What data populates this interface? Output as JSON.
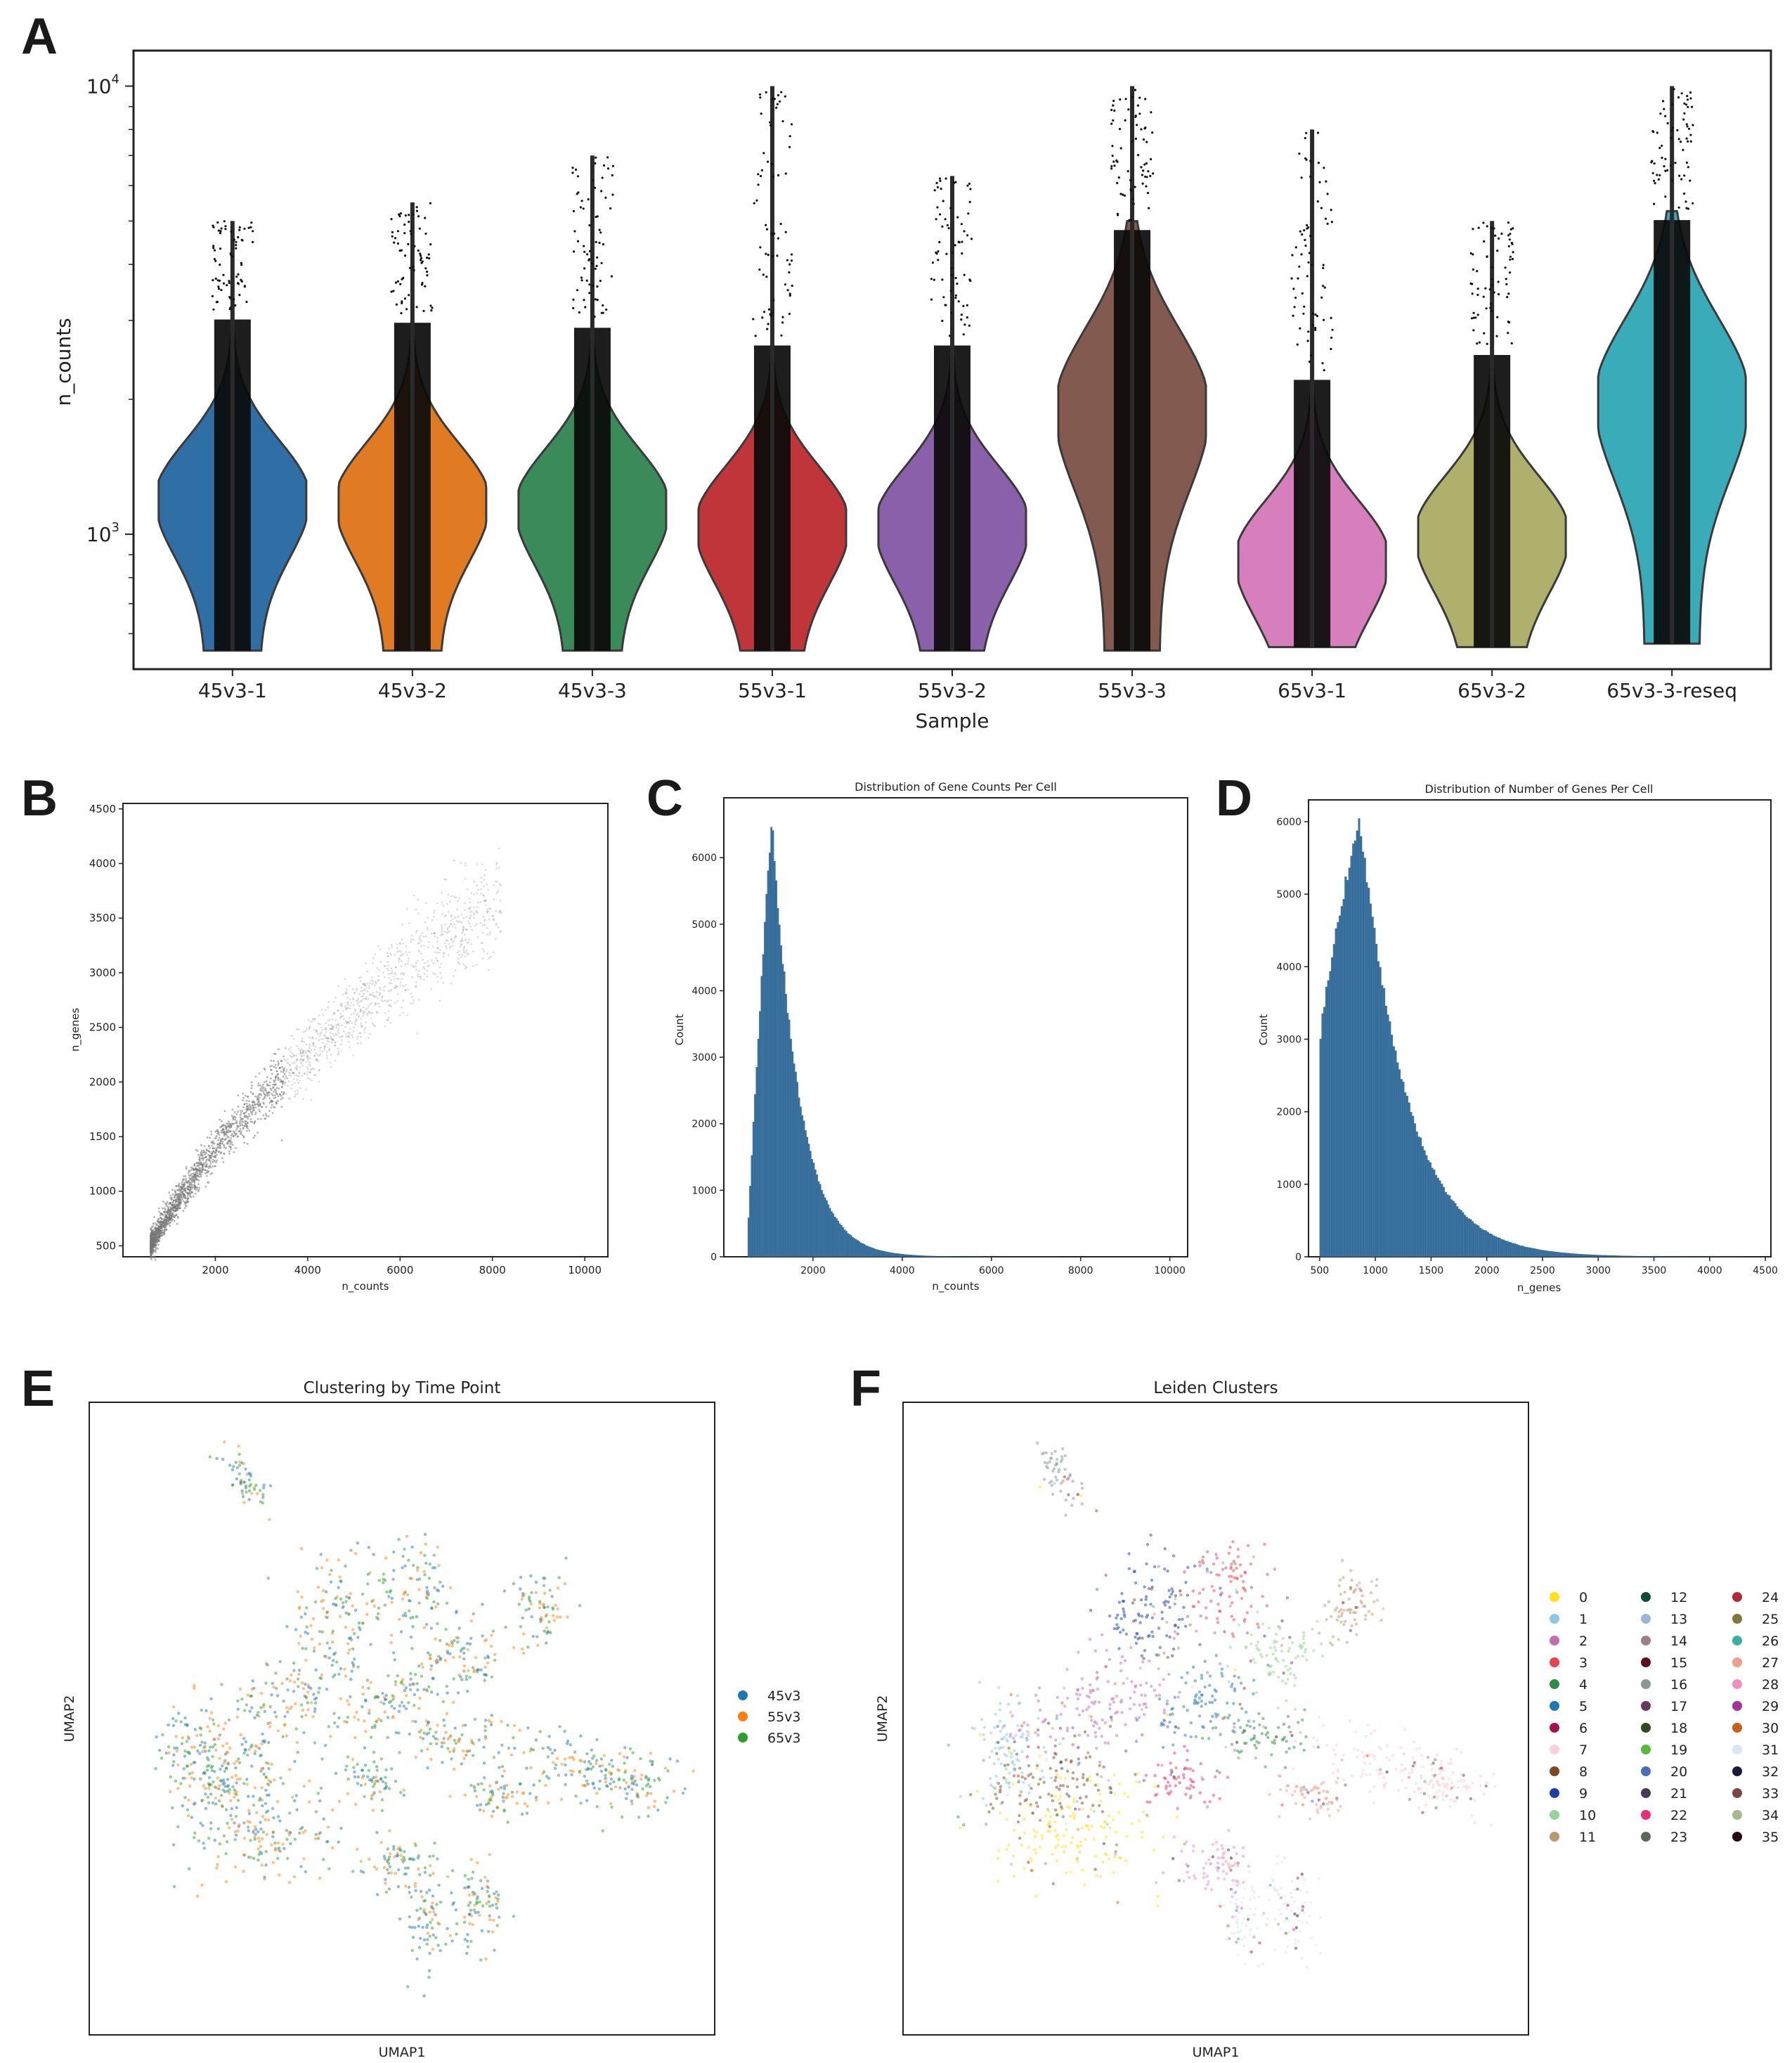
{
  "panel_letters": [
    "A",
    "B",
    "C",
    "D",
    "E",
    "F"
  ],
  "chart_data": [
    {
      "panel": "A",
      "type": "violin",
      "xlabel": "Sample",
      "ylabel": "n_counts",
      "yscale": "log",
      "ylim": [
        500,
        12000
      ],
      "ytick_labels": [
        "10^3",
        "10^4"
      ],
      "categories": [
        "45v3-1",
        "45v3-2",
        "45v3-3",
        "55v3-1",
        "55v3-2",
        "55v3-3",
        "65v3-1",
        "65v3-2",
        "65v3-3-reseq"
      ],
      "colors": [
        "#2f6fa5",
        "#e07b24",
        "#3a8a5a",
        "#c0353a",
        "#8a60aa",
        "#835a4f",
        "#d67fbc",
        "#aeb06b",
        "#3aabb9"
      ],
      "min": [
        550,
        550,
        550,
        550,
        550,
        550,
        560,
        560,
        570
      ],
      "max": [
        5000,
        5500,
        7000,
        10000,
        6300,
        10000,
        8000,
        5000,
        10000
      ],
      "median": [
        1200,
        1180,
        1150,
        1050,
        1050,
        1900,
        880,
        1000,
        2000
      ]
    },
    {
      "panel": "B",
      "type": "scatter",
      "xlabel": "n_counts",
      "ylabel": "n_genes",
      "xlim": [
        0,
        10500
      ],
      "ylim": [
        400,
        4550
      ],
      "xticks": [
        2000,
        4000,
        6000,
        8000,
        10000
      ],
      "yticks": [
        500,
        1000,
        1500,
        2000,
        2500,
        3000,
        3500,
        4000,
        4500
      ],
      "trend_x": [
        600,
        1000,
        2000,
        3000,
        4000,
        5000,
        6000,
        7000,
        8000
      ],
      "trend_y": [
        500,
        800,
        1400,
        1850,
        2250,
        2650,
        3000,
        3300,
        3600
      ]
    },
    {
      "panel": "C",
      "type": "bar",
      "title": "Distribution of Gene Counts Per Cell",
      "xlabel": "n_counts",
      "ylabel": "Count",
      "xlim": [
        0,
        10400
      ],
      "ylim": [
        0,
        6900
      ],
      "xticks": [
        2000,
        4000,
        6000,
        8000,
        10000
      ],
      "yticks": [
        0,
        1000,
        2000,
        3000,
        4000,
        5000,
        6000
      ],
      "peak_x": 1050,
      "peak_count": 6600,
      "range": [
        500,
        10000
      ]
    },
    {
      "panel": "D",
      "type": "bar",
      "title": "Distribution of Number of Genes Per Cell",
      "xlabel": "n_genes",
      "ylabel": "Count",
      "xlim": [
        400,
        4550
      ],
      "ylim": [
        0,
        6300
      ],
      "xticks": [
        500,
        1000,
        1500,
        2000,
        2500,
        3000,
        3500,
        4000,
        4500
      ],
      "yticks": [
        0,
        1000,
        2000,
        3000,
        4000,
        5000,
        6000
      ],
      "peak_x": 850,
      "peak_count": 6050,
      "range": [
        500,
        4300
      ]
    },
    {
      "panel": "E",
      "type": "scatter",
      "title": "Clustering by Time Point",
      "xlabel": "UMAP1",
      "ylabel": "UMAP2",
      "legend": [
        {
          "label": "45v3",
          "color": "#1f77b4"
        },
        {
          "label": "55v3",
          "color": "#ff7f0e"
        },
        {
          "label": "65v3",
          "color": "#2ca02c"
        }
      ]
    },
    {
      "panel": "F",
      "type": "scatter",
      "title": "Leiden Clusters",
      "xlabel": "UMAP1",
      "ylabel": "UMAP2",
      "legend": [
        {
          "label": "0",
          "color": "#ffe119"
        },
        {
          "label": "1",
          "color": "#8fc6e8"
        },
        {
          "label": "2",
          "color": "#c06fb0"
        },
        {
          "label": "3",
          "color": "#e8434e"
        },
        {
          "label": "4",
          "color": "#2e8b48"
        },
        {
          "label": "5",
          "color": "#1f78b4"
        },
        {
          "label": "6",
          "color": "#a3144e"
        },
        {
          "label": "7",
          "color": "#fbd0dc"
        },
        {
          "label": "8",
          "color": "#7a4a1d"
        },
        {
          "label": "9",
          "color": "#1e3fa0"
        },
        {
          "label": "10",
          "color": "#98d49a"
        },
        {
          "label": "11",
          "color": "#b89a70"
        },
        {
          "label": "12",
          "color": "#0f4d3a"
        },
        {
          "label": "13",
          "color": "#9bb6d6"
        },
        {
          "label": "14",
          "color": "#9a8088"
        },
        {
          "label": "15",
          "color": "#5a1020"
        },
        {
          "label": "16",
          "color": "#8a9890"
        },
        {
          "label": "17",
          "color": "#6a3858"
        },
        {
          "label": "18",
          "color": "#2f4a1e"
        },
        {
          "label": "19",
          "color": "#5ab83a"
        },
        {
          "label": "20",
          "color": "#4a6fb8"
        },
        {
          "label": "21",
          "color": "#4a3a5a"
        },
        {
          "label": "22",
          "color": "#e8307a"
        },
        {
          "label": "23",
          "color": "#5a6a58"
        },
        {
          "label": "24",
          "color": "#b02a3a"
        },
        {
          "label": "25",
          "color": "#7a7a3a"
        },
        {
          "label": "26",
          "color": "#3ab0a0"
        },
        {
          "label": "27",
          "color": "#eea090"
        },
        {
          "label": "28",
          "color": "#f08fc0"
        },
        {
          "label": "29",
          "color": "#a8309a"
        },
        {
          "label": "30",
          "color": "#c8601a"
        },
        {
          "label": "31",
          "color": "#dde6f0"
        },
        {
          "label": "32",
          "color": "#1a1a3a"
        },
        {
          "label": "33",
          "color": "#7a4a40"
        },
        {
          "label": "34",
          "color": "#a8b890"
        },
        {
          "label": "35",
          "color": "#2a0a14"
        }
      ]
    }
  ]
}
